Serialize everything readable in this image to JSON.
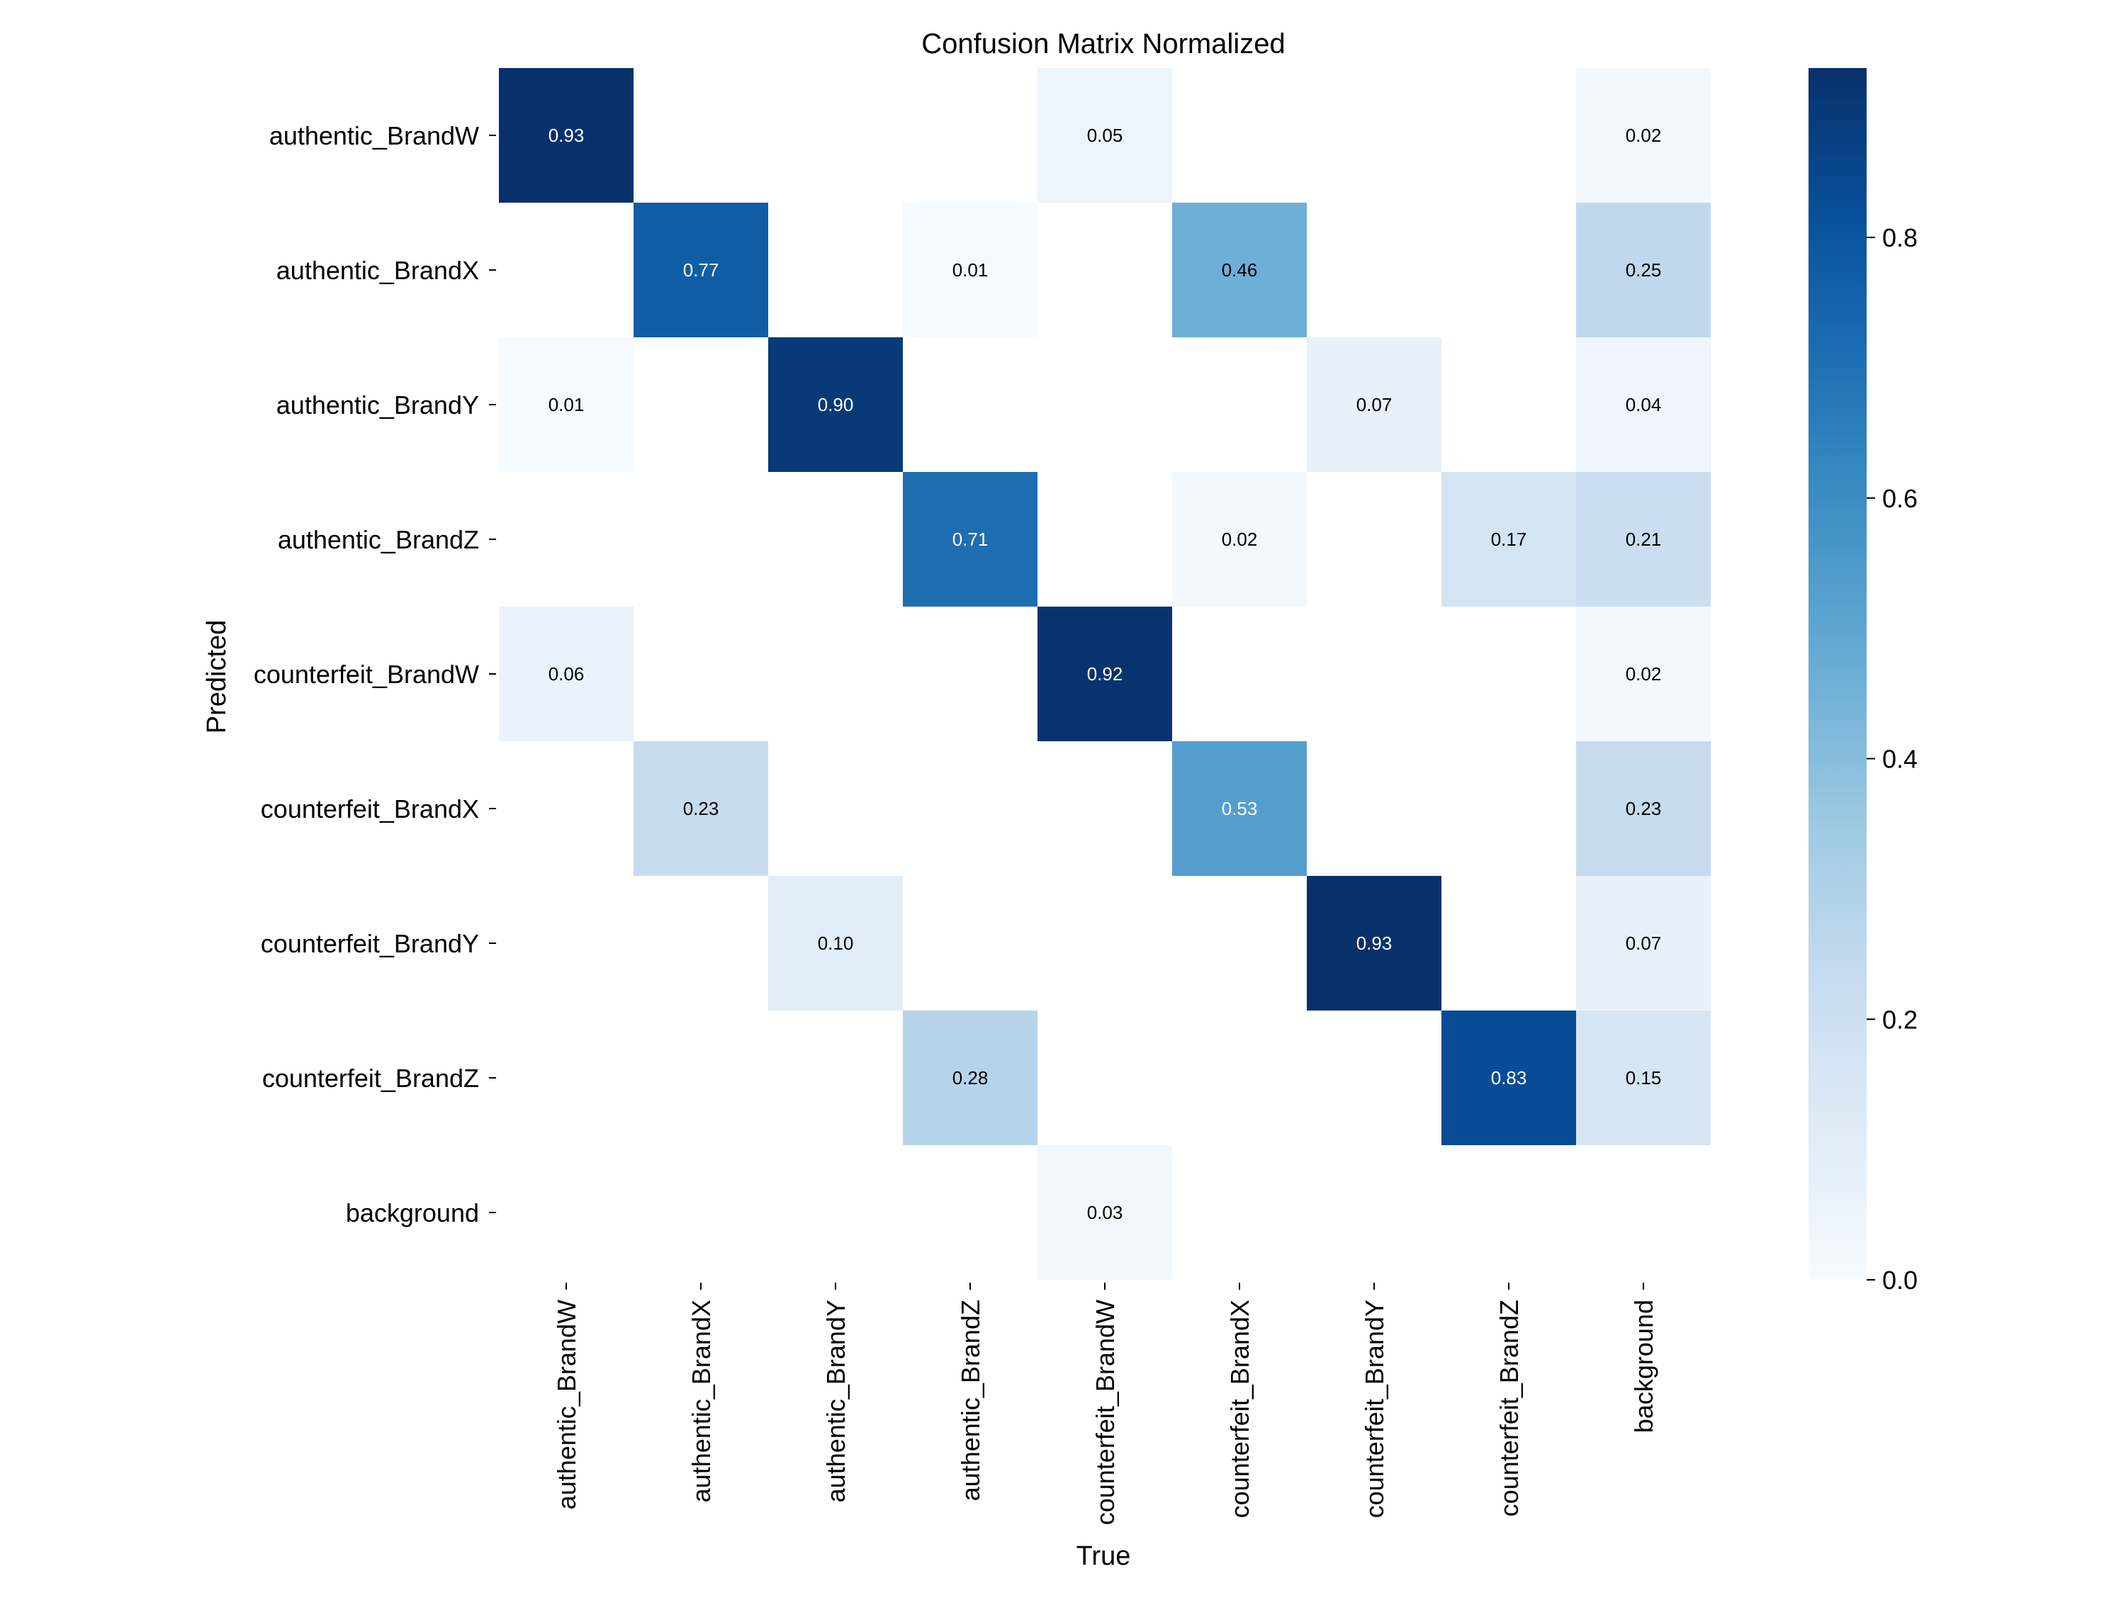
{
  "chart_data": {
    "type": "heatmap",
    "title": "Confusion Matrix Normalized",
    "xlabel": "True",
    "ylabel": "Predicted",
    "x_categories": [
      "authentic_BrandW",
      "authentic_BrandX",
      "authentic_BrandY",
      "authentic_BrandZ",
      "counterfeit_BrandW",
      "counterfeit_BrandX",
      "counterfeit_BrandY",
      "counterfeit_BrandZ",
      "background"
    ],
    "y_categories": [
      "authentic_BrandW",
      "authentic_BrandX",
      "authentic_BrandY",
      "authentic_BrandZ",
      "counterfeit_BrandW",
      "counterfeit_BrandX",
      "counterfeit_BrandY",
      "counterfeit_BrandZ",
      "background"
    ],
    "values": [
      [
        0.93,
        null,
        null,
        null,
        0.05,
        null,
        null,
        null,
        0.02
      ],
      [
        null,
        0.77,
        null,
        0.01,
        null,
        0.46,
        null,
        null,
        0.25
      ],
      [
        0.01,
        null,
        0.9,
        null,
        null,
        null,
        0.07,
        null,
        0.04
      ],
      [
        null,
        null,
        null,
        0.71,
        null,
        0.02,
        null,
        0.17,
        0.21
      ],
      [
        0.06,
        null,
        null,
        null,
        0.92,
        null,
        null,
        null,
        0.02
      ],
      [
        null,
        0.23,
        null,
        null,
        null,
        0.53,
        null,
        null,
        0.23
      ],
      [
        null,
        null,
        0.1,
        null,
        null,
        null,
        0.93,
        null,
        0.07
      ],
      [
        null,
        null,
        null,
        0.28,
        null,
        null,
        null,
        0.83,
        0.15
      ],
      [
        null,
        null,
        null,
        null,
        0.03,
        null,
        null,
        null,
        null
      ]
    ],
    "value_format": "0.00",
    "colormap": "Blues",
    "vmin": 0.0,
    "vmax": 0.93,
    "colorbar_ticks": [
      0.0,
      0.2,
      0.4,
      0.6,
      0.8
    ],
    "colorbar_tick_labels": [
      "0.0",
      "0.2",
      "0.4",
      "0.6",
      "0.8"
    ],
    "grid": false,
    "empty_cell_color": "#ffffff"
  }
}
